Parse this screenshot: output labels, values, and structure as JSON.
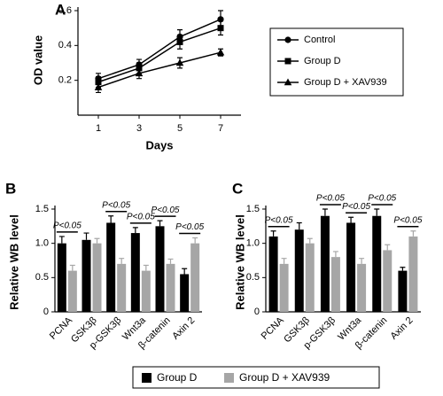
{
  "chart_data": [
    {
      "type": "line",
      "panel": "A",
      "x_label": "Days",
      "y_label": "OD value",
      "x": [
        1,
        3,
        5,
        7
      ],
      "xlim": [
        0,
        8
      ],
      "xticks": [
        1,
        3,
        5,
        7
      ],
      "ylim": [
        0,
        0.6
      ],
      "yticks": [
        0.2,
        0.4,
        0.6
      ],
      "legend": "right",
      "series": [
        {
          "name": "Control",
          "color": "#000000",
          "marker": "circle",
          "values": [
            0.21,
            0.29,
            0.45,
            0.55
          ],
          "errors": [
            0.03,
            0.03,
            0.04,
            0.05
          ]
        },
        {
          "name": "Group D",
          "color": "#000000",
          "marker": "square",
          "values": [
            0.19,
            0.27,
            0.42,
            0.5
          ],
          "errors": [
            0.03,
            0.03,
            0.04,
            0.04
          ]
        },
        {
          "name": "Group D + XAV939",
          "color": "#000000",
          "marker": "triangle",
          "values": [
            0.16,
            0.24,
            0.3,
            0.36
          ],
          "errors": [
            0.03,
            0.03,
            0.03,
            0.02
          ]
        }
      ]
    },
    {
      "type": "bar",
      "panel": "B",
      "y_label": "Relative WB level",
      "categories": [
        "PCNA",
        "GSK3β",
        "p-GSK3β",
        "Wnt3a",
        "β-catenin",
        "Axin 2"
      ],
      "ylim": [
        0,
        1.5
      ],
      "yticks": [
        0,
        0.5,
        {
          "value": 1,
          "label": "1.0"
        },
        1.5
      ],
      "legend": "bottom",
      "series": [
        {
          "name": "Group D",
          "color": "#000000",
          "values": [
            1.0,
            1.05,
            1.3,
            1.15,
            1.25,
            0.55
          ],
          "errors": [
            0.1,
            0.1,
            0.1,
            0.08,
            0.08,
            0.08
          ]
        },
        {
          "name": "Group D + XAV939",
          "color": "#a6a6a6",
          "values": [
            0.6,
            1.0,
            0.7,
            0.6,
            0.7,
            1.0
          ],
          "errors": [
            0.08,
            0.07,
            0.08,
            0.08,
            0.07,
            0.08
          ]
        }
      ],
      "annotations": [
        "P<0.05",
        null,
        "P<0.05",
        "P<0.05",
        "P<0.05",
        "P<0.05"
      ]
    },
    {
      "type": "bar",
      "panel": "C",
      "y_label": "Relative WB level",
      "categories": [
        "PCNA",
        "GSK3β",
        "p-GSK3β",
        "Wnt3a",
        "β-catenin",
        "Axin 2"
      ],
      "ylim": [
        0,
        1.5
      ],
      "yticks": [
        0,
        0.5,
        {
          "value": 1,
          "label": "1.0"
        },
        1.5
      ],
      "series": [
        {
          "color": "#000000",
          "values": [
            1.1,
            1.2,
            1.4,
            1.3,
            1.4,
            0.6
          ],
          "errors": [
            0.08,
            0.1,
            0.1,
            0.08,
            0.1,
            0.05
          ]
        },
        {
          "color": "#a6a6a6",
          "values": [
            0.7,
            1.0,
            0.8,
            0.7,
            0.9,
            1.1
          ],
          "errors": [
            0.08,
            0.07,
            0.08,
            0.08,
            0.08,
            0.08
          ]
        }
      ],
      "annotations": [
        "P<0.05",
        null,
        "P<0.05",
        "P<0.05",
        "P<0.05",
        "P<0.05"
      ]
    }
  ]
}
